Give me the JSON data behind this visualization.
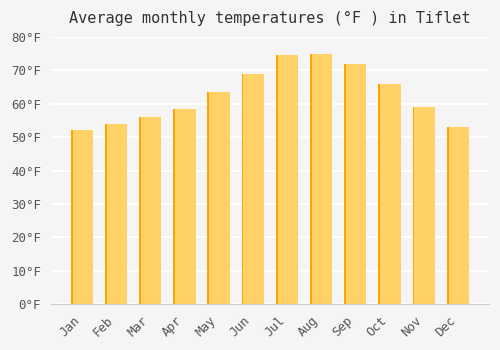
{
  "months": [
    "Jan",
    "Feb",
    "Mar",
    "Apr",
    "May",
    "Jun",
    "Jul",
    "Aug",
    "Sep",
    "Oct",
    "Nov",
    "Dec"
  ],
  "values": [
    52,
    54,
    56,
    58.5,
    63.5,
    69,
    74.5,
    75,
    72,
    66,
    59,
    53
  ],
  "bar_color_top": "#FFA500",
  "bar_color_bottom": "#FFD166",
  "title": "Average monthly temperatures (°F ) in Tiflet",
  "ylim": [
    0,
    80
  ],
  "yticks": [
    0,
    10,
    20,
    30,
    40,
    50,
    60,
    70,
    80
  ],
  "ytick_labels": [
    "0°F",
    "10°F",
    "20°F",
    "30°F",
    "40°F",
    "50°F",
    "60°F",
    "70°F",
    "80°F"
  ],
  "background_color": "#f5f5f5",
  "grid_color": "#ffffff",
  "title_fontsize": 11,
  "tick_fontsize": 9
}
